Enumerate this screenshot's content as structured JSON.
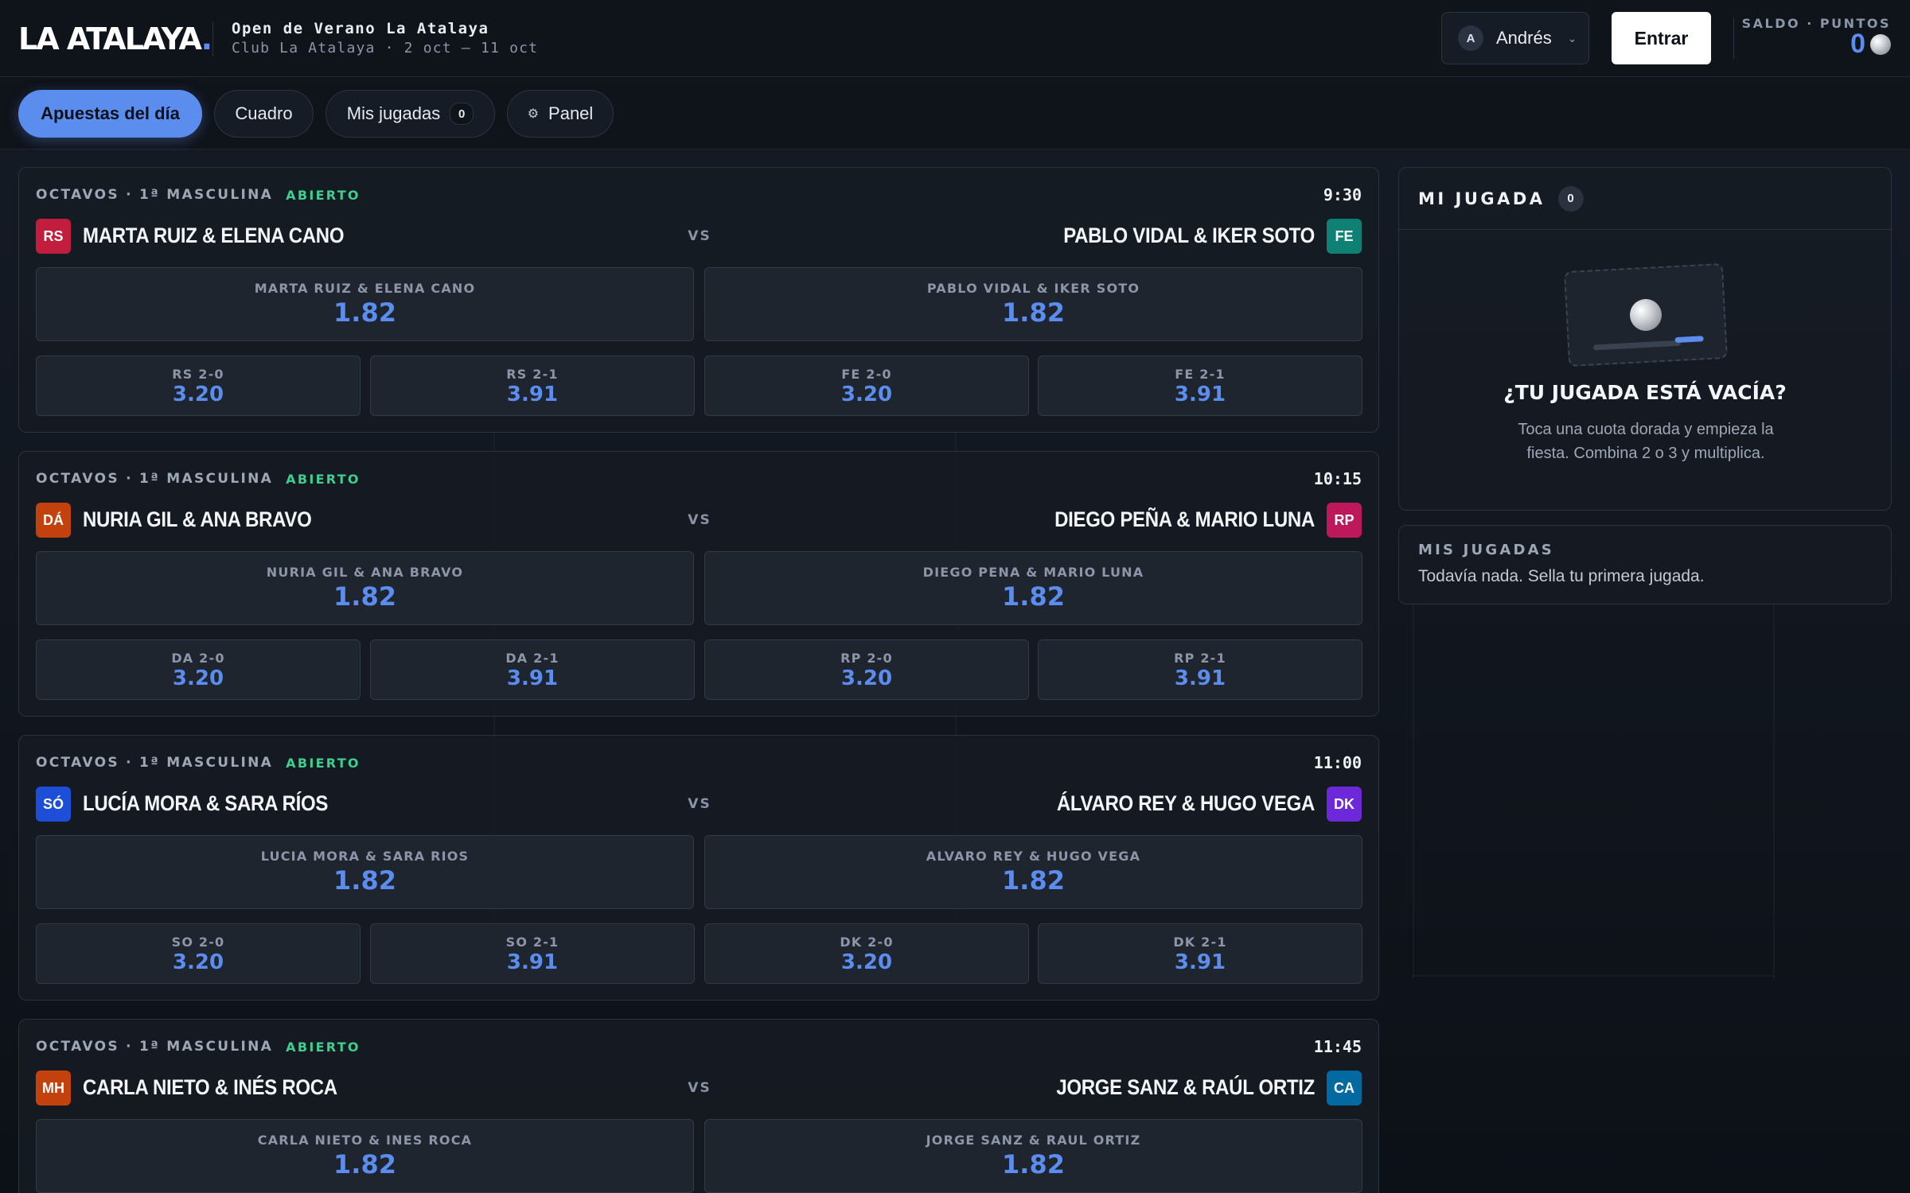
{
  "header": {
    "brand": "LA ATALAYA",
    "brand_dot": ".",
    "event_title": "Open de Verano La Atalaya",
    "event_subtitle": "Club La Atalaya · 2 oct – 11 oct",
    "user_initial": "A",
    "user_name": "Andrés",
    "enter_label": "Entrar",
    "balance_label": "SALDO · PUNTOS",
    "balance_value": "0"
  },
  "nav": {
    "tabs": [
      {
        "label": "Apuestas del día",
        "active": true
      },
      {
        "label": "Cuadro"
      },
      {
        "label": "Mis jugadas",
        "count": "0"
      },
      {
        "label": "Panel",
        "icon": "gear-icon"
      }
    ]
  },
  "matches": [
    {
      "round": "OCTAVOS · 1ª MASCULINA",
      "status": "ABIERTO",
      "time": "9:30",
      "team_a": {
        "badge": "RS",
        "badge_color": "#c21d3c",
        "name": "MARTA RUIZ & ELENA CANO",
        "odd_label": "MARTA RUIZ & ELENA CANO",
        "odd": "1.82"
      },
      "team_b": {
        "badge": "FE",
        "badge_color": "#0f8074",
        "name": "PABLO VIDAL & IKER SOTO",
        "odd_label": "PABLO VIDAL & IKER SOTO",
        "odd": "1.82"
      },
      "vs": "VS",
      "scores": [
        {
          "label": "RS 2-0",
          "odd": "3.20"
        },
        {
          "label": "RS 2-1",
          "odd": "3.91"
        },
        {
          "label": "FE 2-0",
          "odd": "3.20"
        },
        {
          "label": "FE 2-1",
          "odd": "3.91"
        }
      ]
    },
    {
      "round": "OCTAVOS · 1ª MASCULINA",
      "status": "ABIERTO",
      "time": "10:15",
      "team_a": {
        "badge": "DÁ",
        "badge_color": "#c2410c",
        "name": "NURIA GIL & ANA BRAVO",
        "odd_label": "NURIA GIL & ANA BRAVO",
        "odd": "1.82"
      },
      "team_b": {
        "badge": "RP",
        "badge_color": "#be185d",
        "name": "DIEGO PEÑA & MARIO LUNA",
        "odd_label": "DIEGO PENA & MARIO LUNA",
        "odd": "1.82"
      },
      "vs": "VS",
      "scores": [
        {
          "label": "DA 2-0",
          "odd": "3.20"
        },
        {
          "label": "DA 2-1",
          "odd": "3.91"
        },
        {
          "label": "RP 2-0",
          "odd": "3.20"
        },
        {
          "label": "RP 2-1",
          "odd": "3.91"
        }
      ]
    },
    {
      "round": "OCTAVOS · 1ª MASCULINA",
      "status": "ABIERTO",
      "time": "11:00",
      "team_a": {
        "badge": "SÓ",
        "badge_color": "#1d4ed8",
        "name": "LUCÍA MORA & SARA RÍOS",
        "odd_label": "LUCIA MORA & SARA RIOS",
        "odd": "1.82"
      },
      "team_b": {
        "badge": "DK",
        "badge_color": "#6d28d9",
        "name": "ÁLVARO REY & HUGO VEGA",
        "odd_label": "ALVARO REY & HUGO VEGA",
        "odd": "1.82"
      },
      "vs": "VS",
      "scores": [
        {
          "label": "SO 2-0",
          "odd": "3.20"
        },
        {
          "label": "SO 2-1",
          "odd": "3.91"
        },
        {
          "label": "DK 2-0",
          "odd": "3.20"
        },
        {
          "label": "DK 2-1",
          "odd": "3.91"
        }
      ]
    },
    {
      "round": "OCTAVOS · 1ª MASCULINA",
      "status": "ABIERTO",
      "time": "11:45",
      "team_a": {
        "badge": "MH",
        "badge_color": "#c2410c",
        "name": "CARLA NIETO & INÉS ROCA",
        "odd_label": "CARLA NIETO & INES ROCA",
        "odd": "1.82"
      },
      "team_b": {
        "badge": "CA",
        "badge_color": "#0369a1",
        "name": "JORGE SANZ & RAÚL ORTIZ",
        "odd_label": "JORGE SANZ & RAUL ORTIZ",
        "odd": "1.82"
      },
      "vs": "VS",
      "scores": []
    }
  ],
  "slip": {
    "title": "MI JUGADA",
    "count": "0",
    "empty_title": "¿TU JUGADA ESTÁ VACÍA?",
    "empty_text": "Toca una cuota dorada y empieza la fiesta. Combina 2 o 3 y multiplica."
  },
  "my_bets": {
    "title": "MIS JUGADAS",
    "text": "Todavía nada. Sella tu primera jugada."
  }
}
